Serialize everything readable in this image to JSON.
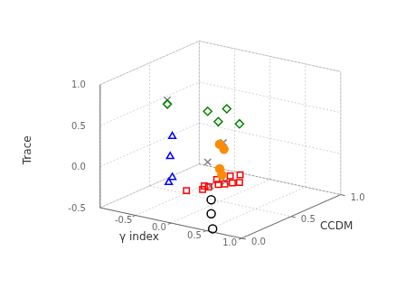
{
  "chart_data": {
    "type": "scatter3d",
    "xlabel": "γ index",
    "ylabel": "CCDM",
    "zlabel": "Trace",
    "xlim": [
      -1,
      1
    ],
    "ylim": [
      0,
      1
    ],
    "zlim": [
      -0.5,
      1
    ],
    "xticks": [
      -0.5,
      {
        "value": 0,
        "label": "0.0"
      },
      0.5,
      {
        "value": 1,
        "label": "1.0"
      }
    ],
    "yticks": [
      {
        "value": 0,
        "label": "0.0"
      },
      0.5,
      {
        "value": 1,
        "label": "1.0"
      }
    ],
    "zticks": [
      -0.5,
      {
        "value": 0,
        "label": "0.0"
      },
      0.5,
      {
        "value": 1,
        "label": "1.0"
      }
    ],
    "grid": true,
    "series": [
      {
        "marker": "circle",
        "color": "black",
        "x": [
          0.5,
          0.5,
          0.52
        ],
        "y": [
          0.05,
          0.05,
          0.05
        ],
        "z": [
          -0.15,
          -0.32,
          -0.5
        ]
      },
      {
        "marker": "triangle",
        "color": "blue",
        "x": [
          -0.05,
          -0.08,
          -0.05,
          -0.1
        ],
        "y": [
          0.05,
          0.05,
          0.05,
          0.05
        ],
        "z": [
          0.52,
          0.27,
          0.02,
          -0.05
        ]
      },
      {
        "marker": "diamond",
        "color": "green",
        "x": [
          0.45,
          0.72,
          0.9,
          0.6,
          -0.12
        ],
        "y": [
          0.05,
          0.05,
          0.05,
          0.05,
          0.05
        ],
        "z": [
          0.92,
          1.0,
          0.85,
          0.82,
          0.9
        ]
      },
      {
        "marker": "dot",
        "color": "darkorange",
        "x": [
          0.62,
          0.68,
          0.62,
          0.65
        ],
        "y": [
          0.05,
          0.05,
          0.05,
          0.05
        ],
        "z": [
          0.55,
          0.5,
          0.25,
          0.18
        ]
      },
      {
        "marker": "square",
        "color": "red",
        "x": [
          -0.55,
          -0.42,
          -0.38,
          -0.33,
          -0.28,
          -0.22,
          -0.5,
          -0.45,
          -0.38,
          -0.42,
          -0.48
        ],
        "y": [
          0.55,
          0.68,
          0.75,
          0.78,
          0.82,
          0.85,
          0.82,
          0.92,
          0.97,
          0.62,
          0.68
        ],
        "z": [
          -0.5,
          -0.5,
          -0.5,
          -0.5,
          -0.5,
          -0.5,
          -0.5,
          -0.5,
          -0.5,
          -0.5,
          -0.5
        ]
      },
      {
        "marker": "x",
        "color": "gray",
        "x": [
          -0.12,
          0.45,
          -0.38,
          -0.42,
          -0.35
        ],
        "y": [
          0.05,
          0.05,
          0.82,
          0.7,
          0.78
        ],
        "z": [
          0.95,
          0.3,
          -0.5,
          -0.5,
          0.0
        ]
      }
    ]
  }
}
